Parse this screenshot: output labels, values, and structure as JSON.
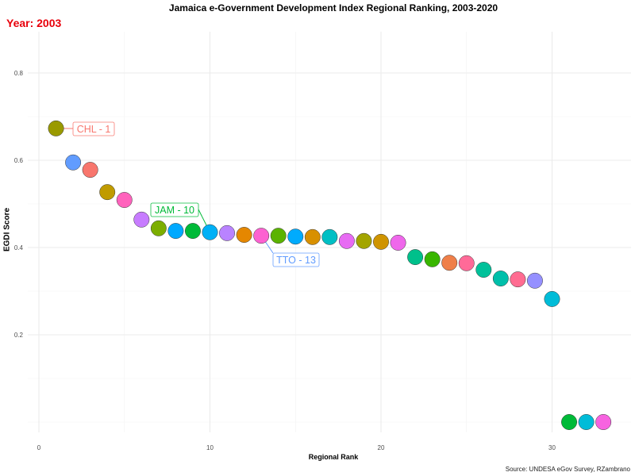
{
  "chart_data": {
    "type": "scatter",
    "title": "Jamaica e-Government Development Index Regional Ranking, 2003-2020",
    "subtitle": "Year: 2003",
    "xlabel": "Regional Rank",
    "ylabel": "EGDI Score",
    "caption": "Source: UNDESA eGov Survey, RZambrano",
    "xlim": [
      -0.6,
      34.5
    ],
    "ylim": [
      -0.02,
      0.88
    ],
    "xticks": [
      0,
      10,
      20,
      30
    ],
    "yticks": [
      0.2,
      0.4,
      0.6,
      0.8
    ],
    "grid": true,
    "points": [
      {
        "x": 1,
        "y": 0.673,
        "color": "#9a9a00"
      },
      {
        "x": 2,
        "y": 0.595,
        "color": "#619cff"
      },
      {
        "x": 3,
        "y": 0.578,
        "color": "#f8766d"
      },
      {
        "x": 4,
        "y": 0.527,
        "color": "#c09b00"
      },
      {
        "x": 5,
        "y": 0.509,
        "color": "#ff62bc"
      },
      {
        "x": 6,
        "y": 0.464,
        "color": "#c77cff"
      },
      {
        "x": 7,
        "y": 0.444,
        "color": "#7cae00"
      },
      {
        "x": 8,
        "y": 0.438,
        "color": "#00a9ff"
      },
      {
        "x": 9,
        "y": 0.438,
        "color": "#00ba38"
      },
      {
        "x": 10,
        "y": 0.435,
        "color": "#00b0f6"
      },
      {
        "x": 11,
        "y": 0.433,
        "color": "#b983ff"
      },
      {
        "x": 12,
        "y": 0.429,
        "color": "#e58700"
      },
      {
        "x": 13,
        "y": 0.427,
        "color": "#fd61d1"
      },
      {
        "x": 14,
        "y": 0.427,
        "color": "#5bb300"
      },
      {
        "x": 15,
        "y": 0.425,
        "color": "#00abfd"
      },
      {
        "x": 16,
        "y": 0.424,
        "color": "#d89000"
      },
      {
        "x": 17,
        "y": 0.424,
        "color": "#00bfc4"
      },
      {
        "x": 18,
        "y": 0.415,
        "color": "#e76bf3"
      },
      {
        "x": 19,
        "y": 0.415,
        "color": "#a3a500"
      },
      {
        "x": 20,
        "y": 0.413,
        "color": "#cf9400"
      },
      {
        "x": 21,
        "y": 0.411,
        "color": "#ef67eb"
      },
      {
        "x": 22,
        "y": 0.378,
        "color": "#00c08b"
      },
      {
        "x": 23,
        "y": 0.373,
        "color": "#39b600"
      },
      {
        "x": 24,
        "y": 0.365,
        "color": "#ef7f49"
      },
      {
        "x": 25,
        "y": 0.364,
        "color": "#ff6a98"
      },
      {
        "x": 26,
        "y": 0.349,
        "color": "#00c19a"
      },
      {
        "x": 27,
        "y": 0.329,
        "color": "#00bfaa"
      },
      {
        "x": 28,
        "y": 0.327,
        "color": "#ff6c91"
      },
      {
        "x": 29,
        "y": 0.324,
        "color": "#9590ff"
      },
      {
        "x": 30,
        "y": 0.282,
        "color": "#00bcd8"
      },
      {
        "x": 31,
        "y": 0.0,
        "color": "#00ba38"
      },
      {
        "x": 32,
        "y": 0.0,
        "color": "#00bcd8"
      },
      {
        "x": 33,
        "y": 0.0,
        "color": "#f763e0"
      }
    ],
    "annotations": [
      {
        "text": "CHL - 1",
        "x": 1,
        "y": 0.673,
        "color": "#f8766d"
      },
      {
        "text": "JAM - 10",
        "x": 10,
        "y": 0.435,
        "color": "#00ba38"
      },
      {
        "text": "TTO - 13",
        "x": 13,
        "y": 0.427,
        "color": "#619cff"
      }
    ]
  }
}
